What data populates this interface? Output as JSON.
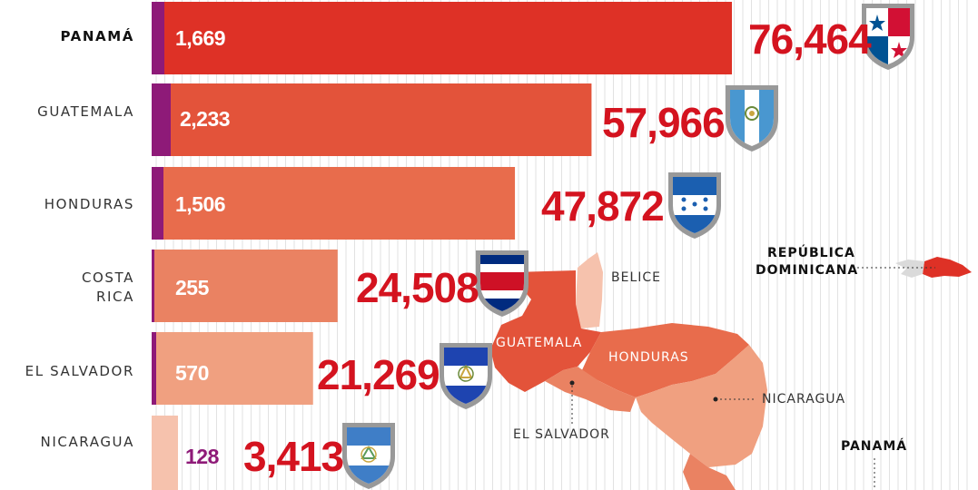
{
  "chart_data": {
    "type": "bar",
    "orientation": "horizontal",
    "categories": [
      "PANAMÁ",
      "GUATEMALA",
      "HONDURAS",
      "COSTA RICA",
      "EL SALVADOR",
      "NICARAGUA"
    ],
    "series": [
      {
        "values": [
          1669,
          2233,
          1506,
          255,
          570,
          128
        ]
      },
      {
        "values": [
          76464,
          57966,
          47872,
          24508,
          21269,
          3413
        ]
      }
    ],
    "value_labels": [
      "1,669",
      "2,233",
      "1,506",
      "255",
      "570",
      "128"
    ],
    "total_labels": [
      "76,464",
      "57,966",
      "47,872",
      "24,508",
      "21,269",
      "3,413"
    ],
    "xlim": [
      0,
      76464
    ],
    "grid": true,
    "colors": [
      "#de3126",
      "#e3533a",
      "#e86c4c",
      "#ea8262",
      "#f0a080",
      "#f6c2ad"
    ],
    "accent_color": "#8e1a78"
  },
  "map": {
    "labels": {
      "belice": "BELICE",
      "guatemala": "GUATEMALA",
      "honduras": "HONDURAS",
      "el_salvador": "EL SALVADOR",
      "nicaragua": "NICARAGUA",
      "panama": "PANAMÁ",
      "rep_dom_1": "REPÚBLICA",
      "rep_dom_2": "DOMINICANA"
    }
  },
  "icons": [
    "panama-flag-shield-icon",
    "guatemala-flag-shield-icon",
    "honduras-flag-shield-icon",
    "costa-rica-flag-shield-icon",
    "el-salvador-flag-shield-icon",
    "nicaragua-flag-shield-icon"
  ]
}
